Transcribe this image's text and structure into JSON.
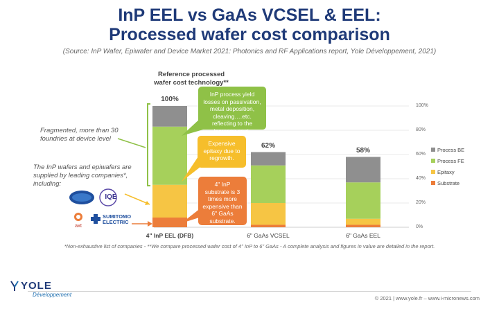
{
  "header": {
    "title_line1": "InP EEL vs GaAs VCSEL & EEL:",
    "title_line2": "Processed wafer cost comparison",
    "source": "(Source: InP Wafer, Epiwafer and Device Market 2021: Photonics and RF Applications report, Yole Développement, 2021)"
  },
  "reference_label_line1": "Reference processed",
  "reference_label_line2": "wafer cost technology**",
  "chart_data": {
    "type": "bar",
    "stacked": true,
    "categories": [
      "4\" InP EEL (DFB)",
      "6\" GaAs VCSEL",
      "6\" GaAs EEL"
    ],
    "series": [
      {
        "name": "Substrate",
        "values": [
          8,
          2,
          2
        ]
      },
      {
        "name": "Epitaxy",
        "values": [
          27,
          18,
          5
        ]
      },
      {
        "name": "Process FE",
        "values": [
          48,
          31,
          30
        ]
      },
      {
        "name": "Process BE",
        "values": [
          17,
          11,
          21
        ]
      }
    ],
    "totals_labels": [
      "100%",
      "62%",
      "58%"
    ],
    "y_ticks": [
      "0%",
      "20%",
      "40%",
      "60%",
      "80%",
      "100%"
    ],
    "ylim": [
      0,
      100
    ],
    "grid": true,
    "legend_position": "right",
    "colors": {
      "Substrate": "#ec7d3a",
      "Epitaxy": "#f6c544",
      "Process FE": "#a6d05b",
      "Process BE": "#8f8f8f"
    }
  },
  "callouts": {
    "process": "InP process yield losses on passivation, metal deposition, cleaving….etc. reflecting to the increase cost.",
    "epitaxy": "Expensive epitaxy due to regrowth.",
    "substrate": "4\" InP substrate is 3 times more expensive than 6\" GaAs substrate."
  },
  "side_notes": {
    "fragmented": "Fragmented, more than 30 foundries at device level",
    "wafers": "The InP wafers and epiwafers are supplied by leading companies*, including:"
  },
  "supplier_logos": {
    "iqe": "IQE",
    "axt": "axt",
    "sumitomo": "SUMITOMO ELECTRIC"
  },
  "footnote": "*Non-exhaustive list of companies - **We compare processed wafer cost of 4\" InP to 6\" GaAs - A complete analysis and figures in value are detailed in the report.",
  "footer": {
    "logo_text": "YOLE",
    "logo_sub": "Développement",
    "copyright": "© 2021 | www.yole.fr – www.i-micronews.com"
  }
}
